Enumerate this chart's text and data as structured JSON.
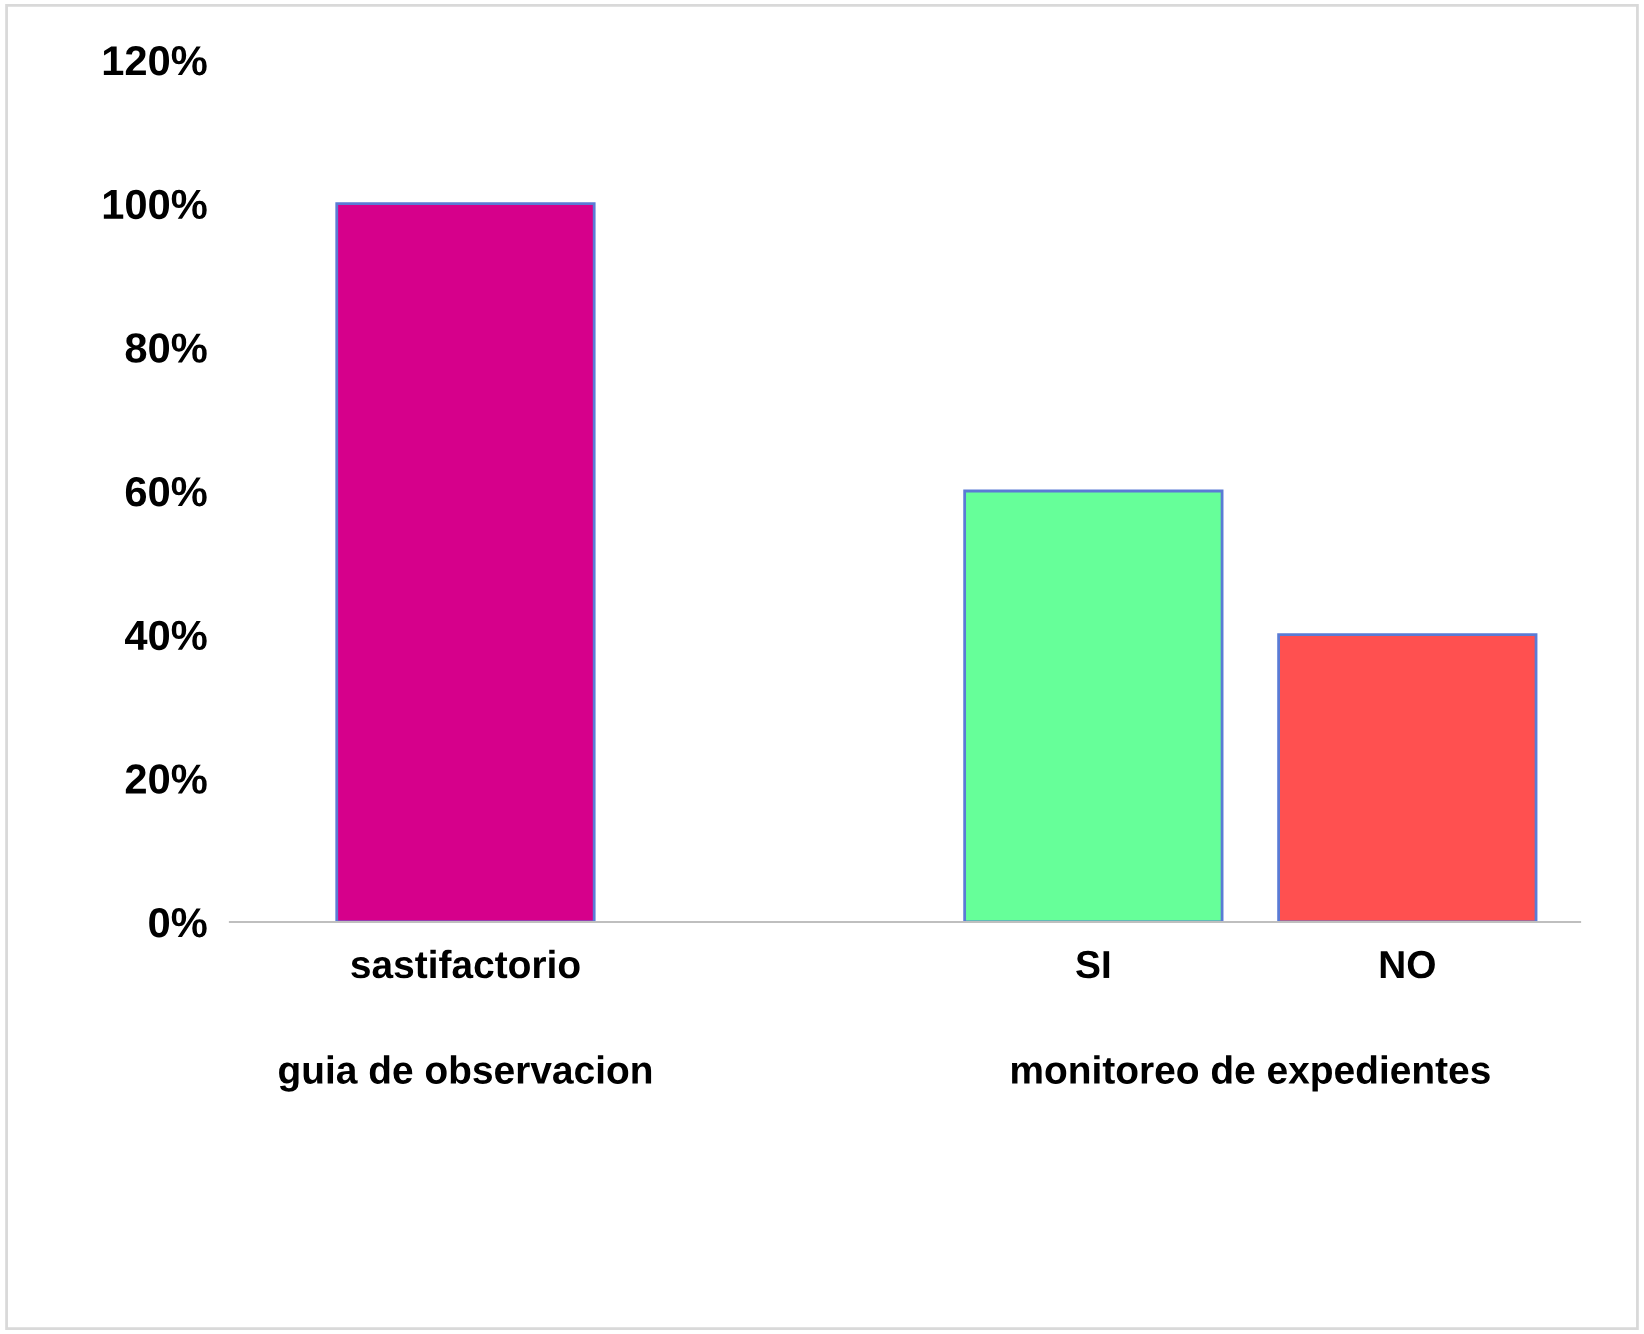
{
  "chart_data": {
    "type": "bar",
    "categories": [
      "sastifactorio",
      null,
      "SI",
      "NO"
    ],
    "values": [
      100,
      null,
      60,
      40
    ],
    "colors": [
      "#d6008b",
      "#ffffff",
      "#66ff99",
      "#ff5050"
    ],
    "ylim": [
      0,
      120
    ],
    "yticks": [
      {
        "value": 0,
        "label": "0%"
      },
      {
        "value": 20,
        "label": "20%"
      },
      {
        "value": 40,
        "label": "40%"
      },
      {
        "value": 60,
        "label": "60%"
      },
      {
        "value": 80,
        "label": "80%"
      },
      {
        "value": 100,
        "label": "100%"
      },
      {
        "value": 120,
        "label": "120%"
      }
    ],
    "annotations": [
      "guia de observacion",
      "monitoreo de expedientes"
    ],
    "grid": false,
    "legend": false
  }
}
